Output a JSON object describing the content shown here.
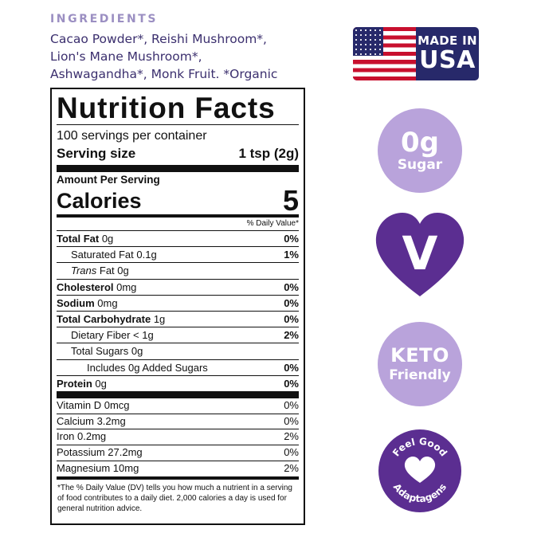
{
  "ingredients": {
    "heading": "INGREDIENTS",
    "lines": [
      "Cacao Powder*, Reishi Mushroom*,",
      "Lion's Mane Mushroom*,",
      "Ashwagandha*, Monk Fruit. *Organic"
    ]
  },
  "nutrition": {
    "title": "Nutrition Facts",
    "servings_per_container": "100 servings per container",
    "serving_size_label": "Serving size",
    "serving_size_value": "1 tsp (2g)",
    "amount_per_serving": "Amount Per Serving",
    "calories_label": "Calories",
    "calories_value": "5",
    "dv_header": "% Daily Value*",
    "total_fat": {
      "label": "Total Fat",
      "amount": " 0g",
      "dv": "0%"
    },
    "saturated_fat": {
      "label": "Saturated Fat 0.1g",
      "dv": "1%"
    },
    "trans_fat": {
      "label_italic": "Trans",
      "label_rest": " Fat 0g"
    },
    "cholesterol": {
      "label": "Cholesterol",
      "amount": " 0mg",
      "dv": "0%"
    },
    "sodium": {
      "label": "Sodium",
      "amount": " 0mg",
      "dv": "0%"
    },
    "total_carbohydrate": {
      "label": "Total Carbohydrate",
      "amount": " 1g",
      "dv": "0%"
    },
    "dietary_fiber": {
      "label": "Dietary Fiber < 1g",
      "dv": "2%"
    },
    "total_sugars": {
      "label": "Total Sugars 0g"
    },
    "added_sugars": {
      "label": "Includes 0g Added Sugars",
      "dv": "0%"
    },
    "protein": {
      "label": "Protein",
      "amount": " 0g",
      "dv": "0%"
    },
    "vitamins": [
      {
        "label": "Vitamin D 0mcg",
        "dv": "0%"
      },
      {
        "label": "Calcium 3.2mg",
        "dv": "0%"
      },
      {
        "label": "Iron 0.2mg",
        "dv": "2%"
      },
      {
        "label": "Potassium 27.2mg",
        "dv": "0%"
      },
      {
        "label": "Magnesium 10mg",
        "dv": "2%"
      }
    ],
    "footnote": "*The % Daily Value (DV) tells you how much a nutrient in a serving of food contributes to a daily diet. 2,000 calories a day is used for general nutrition advice."
  },
  "badges": {
    "usa": {
      "line1": "MADE IN",
      "line2": "USA",
      "icon": "us-flag-icon"
    },
    "sugar": {
      "value": "0g",
      "label": "Sugar"
    },
    "vegan": {
      "letter": "V",
      "icon": "heart-icon"
    },
    "keto": {
      "line1": "KETO",
      "line2": "Friendly"
    },
    "feel_good": {
      "top": "Feel Good",
      "bottom": "Adaptagens",
      "icon": "heart-icon"
    }
  },
  "colors": {
    "lavender": "#b9a3db",
    "purple": "#5b2e91",
    "navy": "#27296a",
    "flag_red": "#c8102e",
    "ingredient_text": "#3b2f6e"
  }
}
